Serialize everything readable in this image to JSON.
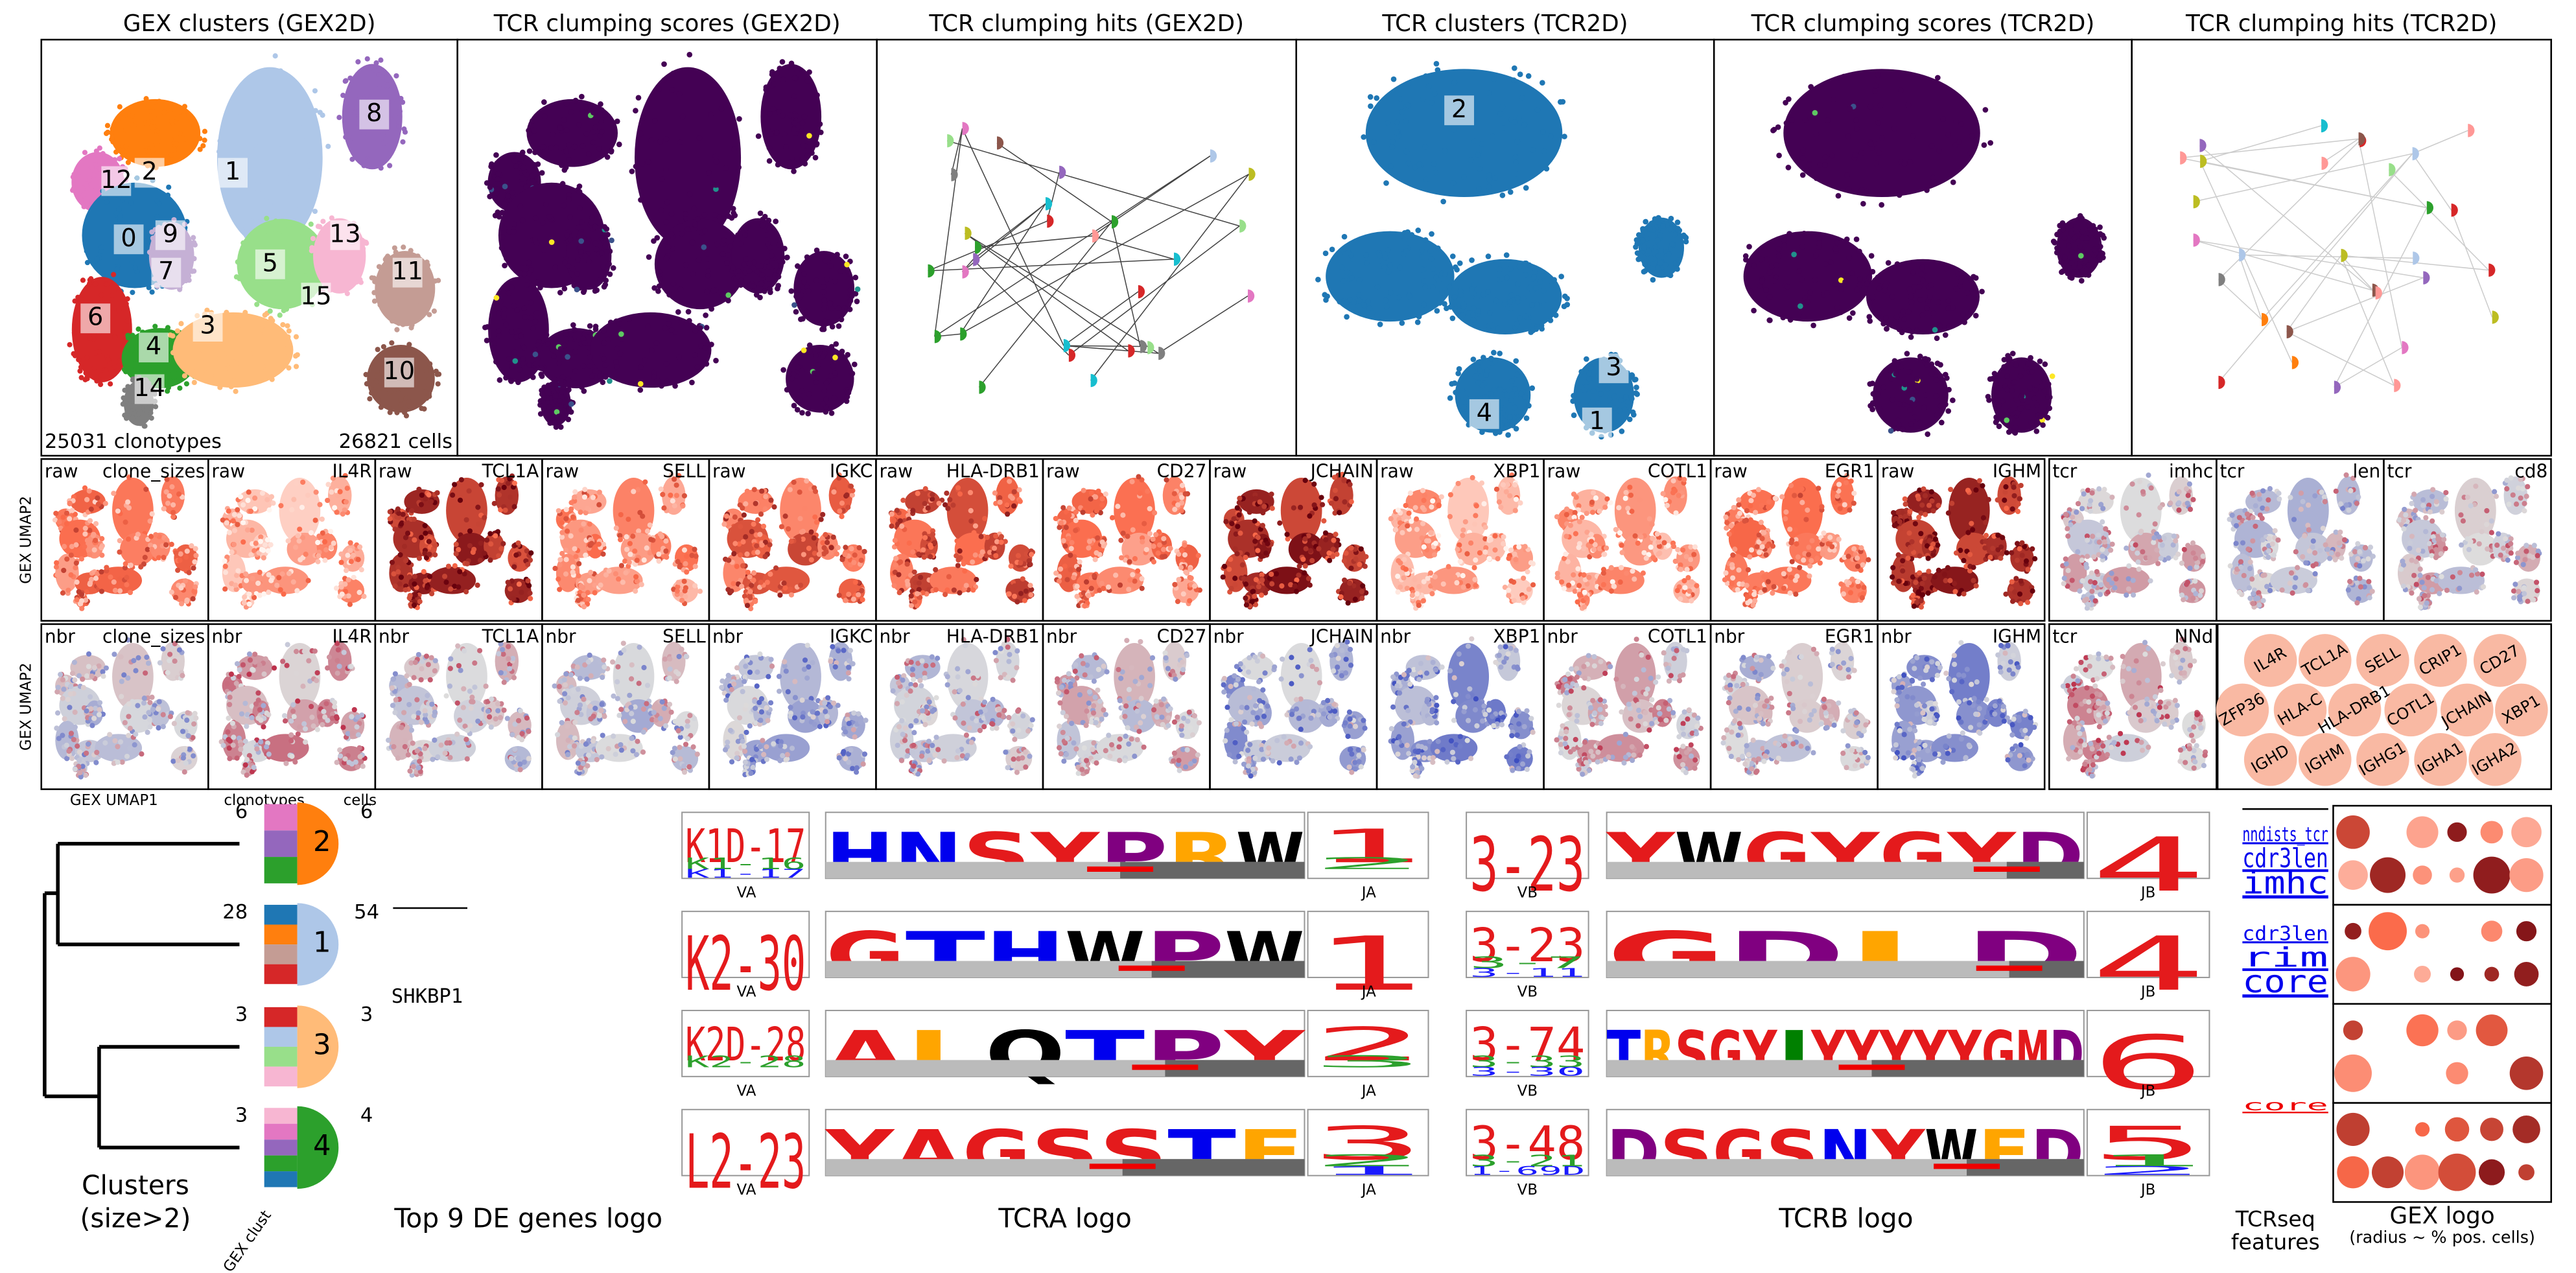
{
  "top_row": {
    "titles": [
      "GEX clusters (GEX2D)",
      "TCR clumping scores (GEX2D)",
      "TCR clumping hits (GEX2D)",
      "TCR clusters (TCR2D)",
      "TCR clumping scores (TCR2D)",
      "TCR clumping hits (TCR2D)"
    ],
    "gex_cluster_labels": [
      12,
      2,
      1,
      8,
      0,
      9,
      7,
      5,
      13,
      15,
      11,
      6,
      3,
      4,
      14,
      10
    ],
    "clonotype_count": "25031 clonotypes",
    "cell_count": "26821 cells",
    "tcr_cluster_labels": [
      2,
      3,
      4,
      1
    ]
  },
  "raw_row": {
    "y_label": "GEX UMAP2",
    "panels": [
      [
        "raw",
        "clone_sizes"
      ],
      [
        "raw",
        "IL4R"
      ],
      [
        "raw",
        "TCL1A"
      ],
      [
        "raw",
        "SELL"
      ],
      [
        "raw",
        "IGKC"
      ],
      [
        "raw",
        "HLA-DRB1"
      ],
      [
        "raw",
        "CD27"
      ],
      [
        "raw",
        "JCHAIN"
      ],
      [
        "raw",
        "XBP1"
      ],
      [
        "raw",
        "COTL1"
      ],
      [
        "raw",
        "EGR1"
      ],
      [
        "raw",
        "IGHM"
      ],
      [
        "tcr",
        "imhc"
      ],
      [
        "tcr",
        "len"
      ],
      [
        "tcr",
        "cd8"
      ]
    ]
  },
  "nbr_row": {
    "y_label": "GEX UMAP2",
    "x_label": "GEX UMAP1",
    "panels": [
      [
        "nbr",
        "clone_sizes"
      ],
      [
        "nbr",
        "IL4R"
      ],
      [
        "nbr",
        "TCL1A"
      ],
      [
        "nbr",
        "SELL"
      ],
      [
        "nbr",
        "IGKC"
      ],
      [
        "nbr",
        "HLA-DRB1"
      ],
      [
        "nbr",
        "CD27"
      ],
      [
        "nbr",
        "JCHAIN"
      ],
      [
        "nbr",
        "XBP1"
      ],
      [
        "nbr",
        "COTL1"
      ],
      [
        "nbr",
        "EGR1"
      ],
      [
        "nbr",
        "IGHM"
      ],
      [
        "tcr",
        "NNd"
      ]
    ]
  },
  "gene_bubbles": [
    "IL4R",
    "TCL1A",
    "SELL",
    "CRIP1",
    "CD27",
    "ZFP36",
    "HLA-C",
    "HLA-DRB1",
    "COTL1",
    "JCHAIN",
    "XBP1",
    "IGHD",
    "IGHM",
    "IGHG1",
    "IGHA1",
    "IGHA2"
  ],
  "logos": {
    "clonotypes_header": "clonotypes",
    "cells_header": "cells",
    "dendrogram_label": [
      "Clusters",
      "(size>2)"
    ],
    "gex_clust_label": "GEX clust",
    "de_gene": "SHKBP1",
    "de_title": "Top 9 DE genes logo",
    "va_label": "VA",
    "ja_label": "JA",
    "vb_label": "VB",
    "jb_label": "JB",
    "tcra_title": "TCRA logo",
    "tcrb_title": "TCRB logo",
    "features_title": [
      "TCRseq",
      "features"
    ],
    "gex_logo_title": "GEX logo",
    "gex_logo_subtitle": "(radius ~ % pos. cells)",
    "rows": [
      {
        "cluster": 2,
        "clonotypes": 6,
        "cells": 6,
        "va": [
          "K1D-17",
          "K1-16",
          "K1-17"
        ],
        "cdr3a": "HNSYPRW",
        "ja": [
          "1",
          "2"
        ],
        "vb": [
          "3-23"
        ],
        "cdr3b": "YWGYGYD",
        "jb": [
          "4"
        ],
        "features": [
          "nndists_tcr",
          "cdr3len",
          "imhc"
        ]
      },
      {
        "cluster": 1,
        "clonotypes": 28,
        "cells": 54,
        "va": [
          "K2-30"
        ],
        "cdr3a": "GTHWPW",
        "ja": [
          "1"
        ],
        "vb": [
          "3-23",
          "3-7",
          "3-11"
        ],
        "cdr3b": "GDLD",
        "jb": [
          "4"
        ],
        "features": [
          "cdr3len",
          "rim",
          "core"
        ]
      },
      {
        "cluster": 3,
        "clonotypes": 3,
        "cells": 3,
        "va": [
          "K2D-28",
          "K2-28"
        ],
        "cdr3a": "ALQTPY",
        "ja": [
          "2",
          "3"
        ],
        "vb": [
          "3-74",
          "3-33",
          "3-30"
        ],
        "cdr3b": "TRSGYIYYYYYGMD",
        "jb": [
          "6"
        ],
        "features": [
          "core"
        ]
      },
      {
        "cluster": 4,
        "clonotypes": 3,
        "cells": 4,
        "va": [
          "L2-23"
        ],
        "cdr3a": "YAGSSTF",
        "ja": [
          "3",
          "2",
          "1"
        ],
        "vb": [
          "3-48",
          "3-21",
          "1-69D"
        ],
        "cdr3b": "DSGSNYWFD",
        "jb": [
          "5",
          "1",
          "2"
        ],
        "features": []
      }
    ]
  }
}
